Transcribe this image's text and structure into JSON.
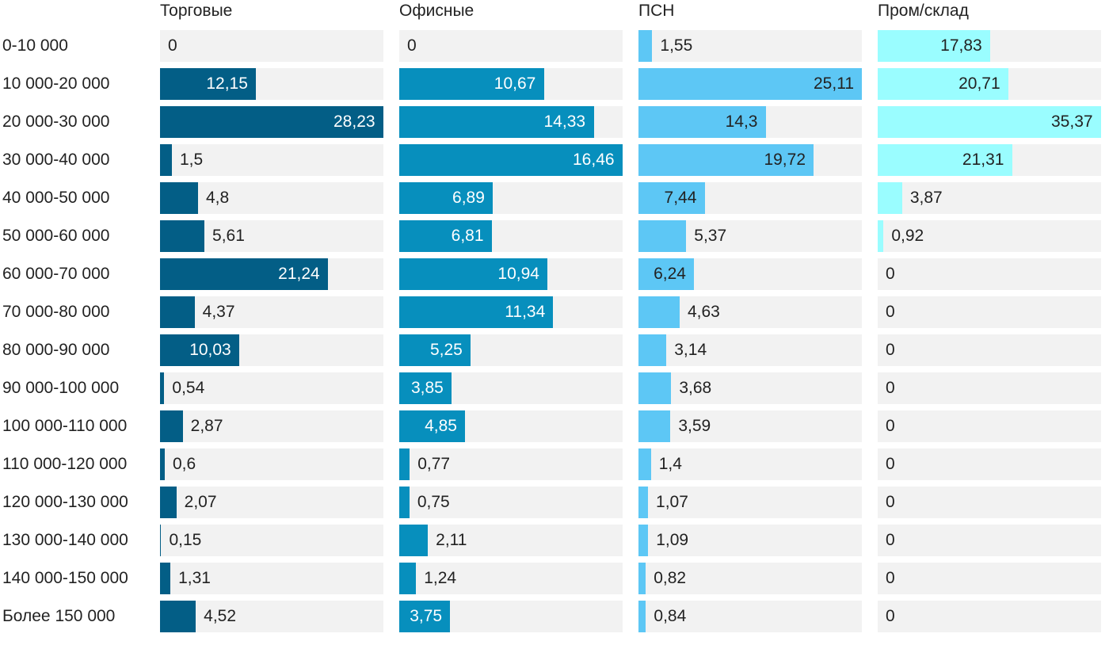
{
  "chart_data": {
    "type": "bar",
    "orientation": "horizontal",
    "layout": "small-multiples",
    "categories": [
      "0-10 000",
      "10 000-20 000",
      "20 000-30 000",
      "30 000-40 000",
      "40 000-50 000",
      "50 000-60 000",
      "60 000-70 000",
      "70 000-80 000",
      "80 000-90 000",
      "90 000-100 000",
      "100 000-110 000",
      "110 000-120 000",
      "120 000-130 000",
      "130 000-140 000",
      "140 000-150 000",
      "Более 150 000"
    ],
    "series": [
      {
        "name": "Торговые",
        "color": "#035e86",
        "label_inside_color": "#ffffff",
        "values": [
          0,
          12.15,
          28.23,
          1.5,
          4.8,
          5.61,
          21.24,
          4.37,
          10.03,
          0.54,
          2.87,
          0.6,
          2.07,
          0.15,
          1.31,
          4.52
        ],
        "labels": [
          "0",
          "12,15",
          "28,23",
          "1,5",
          "4,8",
          "5,61",
          "21,24",
          "4,37",
          "10,03",
          "0,54",
          "2,87",
          "0,6",
          "2,07",
          "0,15",
          "1,31",
          "4,52"
        ]
      },
      {
        "name": "Офисные",
        "color": "#078fbd",
        "label_inside_color": "#ffffff",
        "values": [
          0,
          10.67,
          14.33,
          16.46,
          6.89,
          6.81,
          10.94,
          11.34,
          5.25,
          3.85,
          4.85,
          0.77,
          0.75,
          2.11,
          1.24,
          3.75
        ],
        "labels": [
          "0",
          "10,67",
          "14,33",
          "16,46",
          "6,89",
          "6,81",
          "10,94",
          "11,34",
          "5,25",
          "3,85",
          "4,85",
          "0,77",
          "0,75",
          "2,11",
          "1,24",
          "3,75"
        ]
      },
      {
        "name": "ПСН",
        "color": "#5dc7f5",
        "label_inside_color": "#222222",
        "values": [
          1.55,
          25.11,
          14.3,
          19.72,
          7.44,
          5.37,
          6.24,
          4.63,
          3.14,
          3.68,
          3.59,
          1.4,
          1.07,
          1.09,
          0.82,
          0.84
        ],
        "labels": [
          "1,55",
          "25,11",
          "14,3",
          "19,72",
          "7,44",
          "5,37",
          "6,24",
          "4,63",
          "3,14",
          "3,68",
          "3,59",
          "1,4",
          "1,07",
          "1,09",
          "0,82",
          "0,84"
        ]
      },
      {
        "name": "Пром/склад",
        "color": "#9afdff",
        "label_inside_color": "#222222",
        "values": [
          17.83,
          20.71,
          35.37,
          21.31,
          3.87,
          0.92,
          0,
          0,
          0,
          0,
          0,
          0,
          0,
          0,
          0,
          0
        ],
        "labels": [
          "17,83",
          "20,71",
          "35,37",
          "21,31",
          "3,87",
          "0,92",
          "0",
          "0",
          "0",
          "0",
          "0",
          "0",
          "0",
          "0",
          "0",
          "0"
        ]
      }
    ],
    "scale": "each panel scaled to its own maximum",
    "grid": false,
    "legend": "none"
  }
}
